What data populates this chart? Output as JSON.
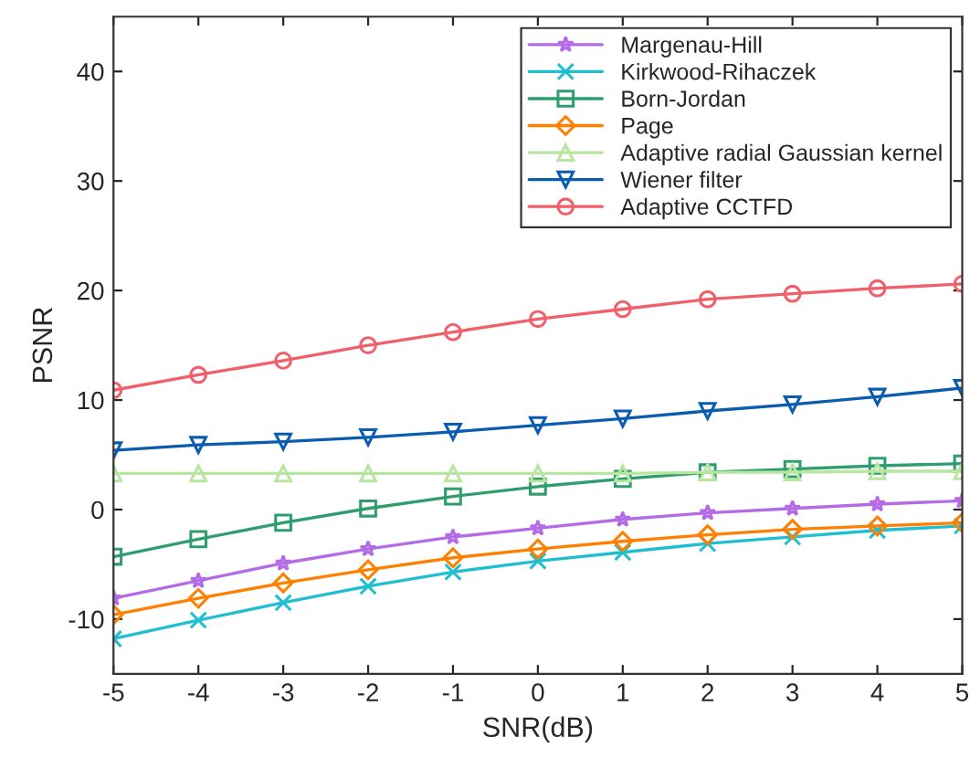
{
  "chart_data": {
    "type": "line",
    "xlabel": "SNR(dB)",
    "ylabel": "PSNR",
    "x": [
      -5,
      -4,
      -3,
      -2,
      -1,
      0,
      1,
      2,
      3,
      4,
      5
    ],
    "xlim": [
      -5,
      5
    ],
    "xticks": [
      -5,
      -4,
      -3,
      -2,
      -1,
      0,
      1,
      2,
      3,
      4,
      5
    ],
    "ylim": [
      -15,
      45
    ],
    "yticks": [
      -10,
      0,
      10,
      20,
      30,
      40
    ],
    "grid": false,
    "legend": "top right",
    "line_style": "solid",
    "series": [
      {
        "name": "Margenau-Hill",
        "color": "#b36be6",
        "marker": "star",
        "values": [
          -8.1,
          -6.5,
          -4.9,
          -3.6,
          -2.5,
          -1.7,
          -0.9,
          -0.3,
          0.1,
          0.5,
          0.8
        ]
      },
      {
        "name": "Kirkwood-Rihaczek",
        "color": "#1fbfcf",
        "marker": "cross",
        "values": [
          -11.8,
          -10.1,
          -8.5,
          -7.0,
          -5.7,
          -4.7,
          -3.9,
          -3.1,
          -2.5,
          -1.9,
          -1.5
        ]
      },
      {
        "name": "Born-Jordan",
        "color": "#2e9e6e",
        "marker": "square",
        "values": [
          -4.3,
          -2.7,
          -1.2,
          0.1,
          1.2,
          2.1,
          2.8,
          3.4,
          3.7,
          4.0,
          4.2
        ]
      },
      {
        "name": "Page",
        "color": "#ff8000",
        "marker": "diamond",
        "values": [
          -9.6,
          -8.1,
          -6.7,
          -5.5,
          -4.4,
          -3.6,
          -2.9,
          -2.3,
          -1.8,
          -1.5,
          -1.2
        ]
      },
      {
        "name": "Adaptive radial Gaussian kernel",
        "color": "#b8e6a0",
        "marker": "triangle",
        "values": [
          3.3,
          3.3,
          3.3,
          3.3,
          3.3,
          3.3,
          3.3,
          3.4,
          3.4,
          3.5,
          3.5
        ]
      },
      {
        "name": "Wiener filter",
        "color": "#0a5cb0",
        "marker": "triangle_down",
        "values": [
          5.4,
          5.9,
          6.2,
          6.6,
          7.1,
          7.7,
          8.3,
          9.0,
          9.6,
          10.3,
          11.1
        ]
      },
      {
        "name": "Adaptive CCTFD",
        "color": "#f0606a",
        "marker": "circle",
        "values": [
          10.9,
          12.3,
          13.6,
          15.0,
          16.2,
          17.4,
          18.3,
          19.2,
          19.7,
          20.2,
          20.6
        ]
      }
    ]
  }
}
